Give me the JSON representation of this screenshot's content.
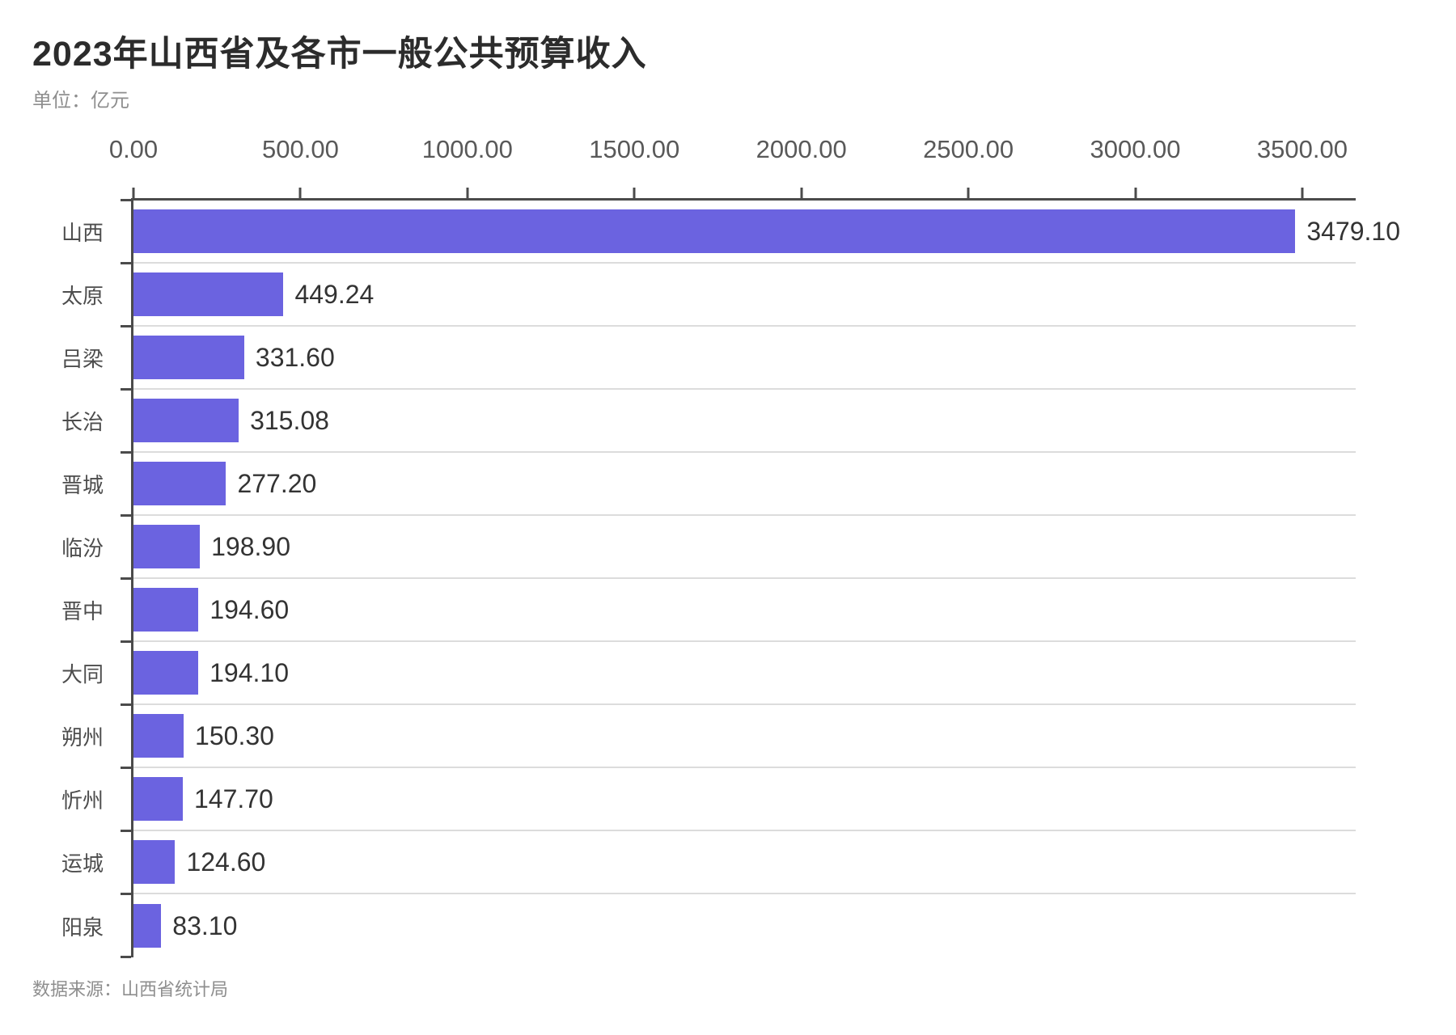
{
  "header": {
    "title": "2023年山西省及各市一般公共预算收入",
    "unit_label": "单位：亿元"
  },
  "footer": {
    "source": "数据来源：山西省统计局"
  },
  "chart_data": {
    "type": "bar",
    "orientation": "horizontal",
    "title": "2023年山西省及各市一般公共预算收入",
    "unit": "亿元",
    "categories": [
      "山西",
      "太原",
      "吕梁",
      "长治",
      "晋城",
      "临汾",
      "晋中",
      "大同",
      "朔州",
      "忻州",
      "运城",
      "阳泉"
    ],
    "values": [
      3479.1,
      449.24,
      331.6,
      315.08,
      277.2,
      198.9,
      194.6,
      194.1,
      150.3,
      147.7,
      124.6,
      83.1
    ],
    "value_labels": [
      "3479.10",
      "449.24",
      "331.60",
      "315.08",
      "277.20",
      "198.90",
      "194.60",
      "194.10",
      "150.30",
      "147.70",
      "124.60",
      "83.10"
    ],
    "x_ticks": [
      "0.00",
      "500.00",
      "1000.00",
      "1500.00",
      "2000.00",
      "2500.00",
      "3000.00",
      "3500.00"
    ],
    "x_tick_values": [
      0,
      500,
      1000,
      1500,
      2000,
      2500,
      3000,
      3500
    ],
    "xlim": [
      0,
      3660
    ],
    "axis_position": "top",
    "grid": "row-separators",
    "bar_color": "#6B63E0",
    "axis_color": "#4b4b4b",
    "grid_color": "#dcdcdc",
    "legend": "none"
  }
}
